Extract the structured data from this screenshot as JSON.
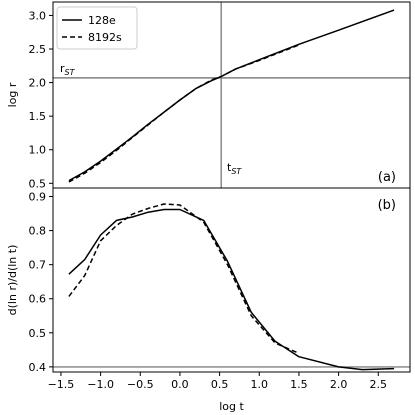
{
  "chart_data": {
    "type": "line",
    "legend": {
      "placement": "top-left",
      "entries": [
        {
          "label": "128e",
          "style": "solid"
        },
        {
          "label": "8192s",
          "style": "dashed"
        }
      ]
    },
    "shared_x": {
      "label": "log t",
      "lim": [
        -1.6,
        2.9
      ],
      "ticks": [
        -1.5,
        -1.0,
        -0.5,
        0.0,
        0.5,
        1.0,
        1.5,
        2.0,
        2.5
      ],
      "tick_labels": [
        "−1.5",
        "−1.0",
        "−0.5",
        "0.0",
        "0.5",
        "1.0",
        "1.5",
        "2.0",
        "2.5"
      ]
    },
    "panels": [
      {
        "tag": "(a)",
        "ylabel": "log r",
        "ylim": [
          0.43,
          3.2
        ],
        "yticks": [
          0.5,
          1.0,
          1.5,
          2.0,
          2.5,
          3.0
        ],
        "ytick_labels": [
          "0.5",
          "1.0",
          "1.5",
          "2.0",
          "2.5",
          "3.0"
        ],
        "reference_lines": {
          "vertical_x": 0.52,
          "horizontal_y": 2.07
        },
        "annotations": {
          "r_label": {
            "base": "r",
            "sub": "ST"
          },
          "t_label": {
            "base": "t",
            "sub": "ST"
          }
        },
        "series": [
          {
            "name": "128e",
            "style": "solid",
            "x": [
              -1.4,
              -1.2,
              -1.0,
              -0.8,
              -0.6,
              -0.4,
              -0.2,
              0.0,
              0.2,
              0.4,
              0.52,
              0.7,
              1.0,
              1.5,
              2.0,
              2.7
            ],
            "y": [
              0.54,
              0.67,
              0.83,
              1.01,
              1.19,
              1.38,
              1.56,
              1.74,
              1.91,
              2.03,
              2.09,
              2.2,
              2.34,
              2.57,
              2.78,
              3.08
            ]
          },
          {
            "name": "8192s",
            "style": "dashed",
            "x": [
              -1.4,
              -1.2,
              -1.0,
              -0.8,
              -0.6,
              -0.4,
              -0.2,
              0.0,
              0.2,
              0.4,
              0.52,
              0.7,
              1.0,
              1.5
            ],
            "y": [
              0.52,
              0.65,
              0.81,
              0.99,
              1.18,
              1.37,
              1.56,
              1.74,
              1.91,
              2.04,
              2.09,
              2.2,
              2.33,
              2.56
            ]
          }
        ]
      },
      {
        "tag": "(b)",
        "ylabel": "d(ln r)/d(ln t)",
        "ylim": [
          0.385,
          0.925
        ],
        "yticks": [
          0.4,
          0.5,
          0.6,
          0.7,
          0.8,
          0.9
        ],
        "ytick_labels": [
          "0.4",
          "0.5",
          "0.6",
          "0.7",
          "0.8",
          "0.9"
        ],
        "reference_lines": {
          "horizontal_y": 0.4
        },
        "series": [
          {
            "name": "128e",
            "style": "solid",
            "x": [
              -1.4,
              -1.2,
              -1.0,
              -0.8,
              -0.6,
              -0.4,
              -0.2,
              0.0,
              0.3,
              0.6,
              0.9,
              1.2,
              1.5,
              2.0,
              2.3,
              2.7
            ],
            "y": [
              0.672,
              0.715,
              0.787,
              0.83,
              0.84,
              0.854,
              0.862,
              0.862,
              0.83,
              0.71,
              0.56,
              0.475,
              0.43,
              0.4,
              0.392,
              0.395
            ]
          },
          {
            "name": "8192s",
            "style": "dashed",
            "x": [
              -1.4,
              -1.2,
              -1.0,
              -0.8,
              -0.6,
              -0.4,
              -0.2,
              0.0,
              0.3,
              0.6,
              0.9,
              1.2,
              1.5
            ],
            "y": [
              0.607,
              0.668,
              0.77,
              0.815,
              0.848,
              0.865,
              0.878,
              0.875,
              0.825,
              0.7,
              0.55,
              0.47,
              0.44
            ]
          }
        ]
      }
    ]
  }
}
